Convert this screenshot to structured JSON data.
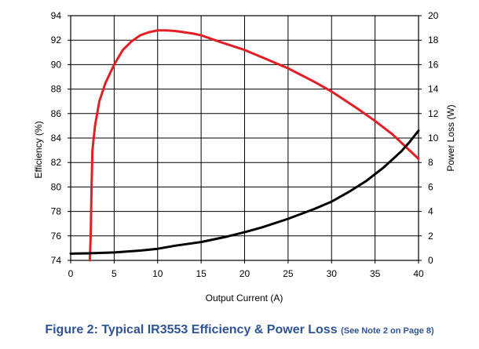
{
  "caption": {
    "main": "Figure 2: Typical IR3553 Efficiency & Power Loss",
    "note": "(See Note 2 on Page 8)"
  },
  "chart_data": {
    "type": "line",
    "xlabel": "Output Current (A)",
    "ylabel_left": "Efficiency (%)",
    "ylabel_right": "Power Loss (W)",
    "xlim": [
      0,
      40
    ],
    "ylim_left": [
      74,
      94
    ],
    "ylim_right": [
      0,
      20
    ],
    "x_ticks": [
      0,
      5,
      10,
      15,
      20,
      25,
      30,
      35,
      40
    ],
    "y_ticks_left": [
      74,
      76,
      78,
      80,
      82,
      84,
      86,
      88,
      90,
      92,
      94
    ],
    "y_ticks_right": [
      0,
      2,
      4,
      6,
      8,
      10,
      12,
      14,
      16,
      18,
      20
    ],
    "grid": true,
    "series": [
      {
        "axis": "left",
        "color": "#e31e24",
        "points": [
          [
            2.2,
            74
          ],
          [
            2.3,
            76
          ],
          [
            2.4,
            80
          ],
          [
            2.5,
            83
          ],
          [
            2.8,
            85
          ],
          [
            3.3,
            87
          ],
          [
            4,
            88.5
          ],
          [
            5,
            90
          ],
          [
            6,
            91.2
          ],
          [
            7,
            91.9
          ],
          [
            8,
            92.4
          ],
          [
            9,
            92.65
          ],
          [
            10,
            92.8
          ],
          [
            11,
            92.8
          ],
          [
            12,
            92.75
          ],
          [
            14,
            92.55
          ],
          [
            15,
            92.4
          ],
          [
            17,
            91.9
          ],
          [
            20,
            91.2
          ],
          [
            22,
            90.6
          ],
          [
            25,
            89.7
          ],
          [
            28,
            88.6
          ],
          [
            30,
            87.8
          ],
          [
            33,
            86.4
          ],
          [
            35,
            85.4
          ],
          [
            37,
            84.3
          ],
          [
            38.5,
            83.3
          ],
          [
            40,
            82.3
          ]
        ]
      },
      {
        "axis": "right",
        "color": "#000000",
        "points": [
          [
            0,
            0.55
          ],
          [
            2,
            0.58
          ],
          [
            5,
            0.65
          ],
          [
            8,
            0.8
          ],
          [
            10,
            0.95
          ],
          [
            12,
            1.2
          ],
          [
            15,
            1.5
          ],
          [
            18,
            1.95
          ],
          [
            20,
            2.3
          ],
          [
            22,
            2.7
          ],
          [
            25,
            3.4
          ],
          [
            28,
            4.2
          ],
          [
            30,
            4.8
          ],
          [
            32,
            5.6
          ],
          [
            34,
            6.5
          ],
          [
            36,
            7.6
          ],
          [
            38,
            8.9
          ],
          [
            39,
            9.7
          ],
          [
            40,
            10.6
          ]
        ]
      }
    ]
  }
}
